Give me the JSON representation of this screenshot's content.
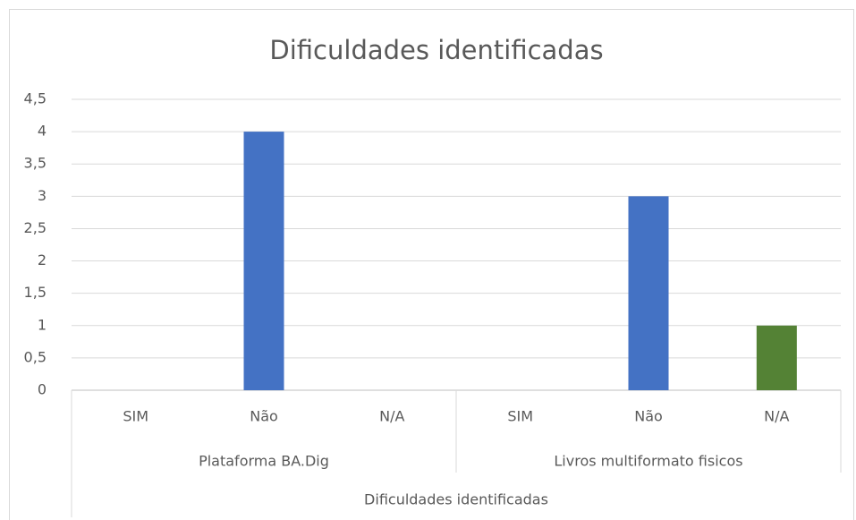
{
  "chart_data": {
    "type": "bar",
    "title": "Dificuldades identificadas",
    "categories": [
      "SIM",
      "Não",
      "N/A",
      "SIM",
      "Não",
      "N/A"
    ],
    "groups": [
      "Plataforma BA.Dig",
      "Livros multiformato fisicos"
    ],
    "x_label": "Dificuldades identificadas",
    "values": [
      0,
      4,
      0,
      0,
      3,
      1
    ],
    "colors": [
      "#4472c4",
      "#4472c4",
      "#548235",
      "#4472c4",
      "#4472c4",
      "#548235"
    ],
    "ylim": [
      0,
      4.5
    ],
    "yticks": [
      0,
      {
        "value": 0.5,
        "label": "0,5"
      },
      1,
      {
        "value": 1.5,
        "label": "1,5"
      },
      2,
      {
        "value": 2.5,
        "label": "2,5"
      },
      3,
      {
        "value": 3.5,
        "label": "3,5"
      },
      4,
      {
        "value": 4.5,
        "label": "4,5"
      }
    ],
    "grid": true
  }
}
